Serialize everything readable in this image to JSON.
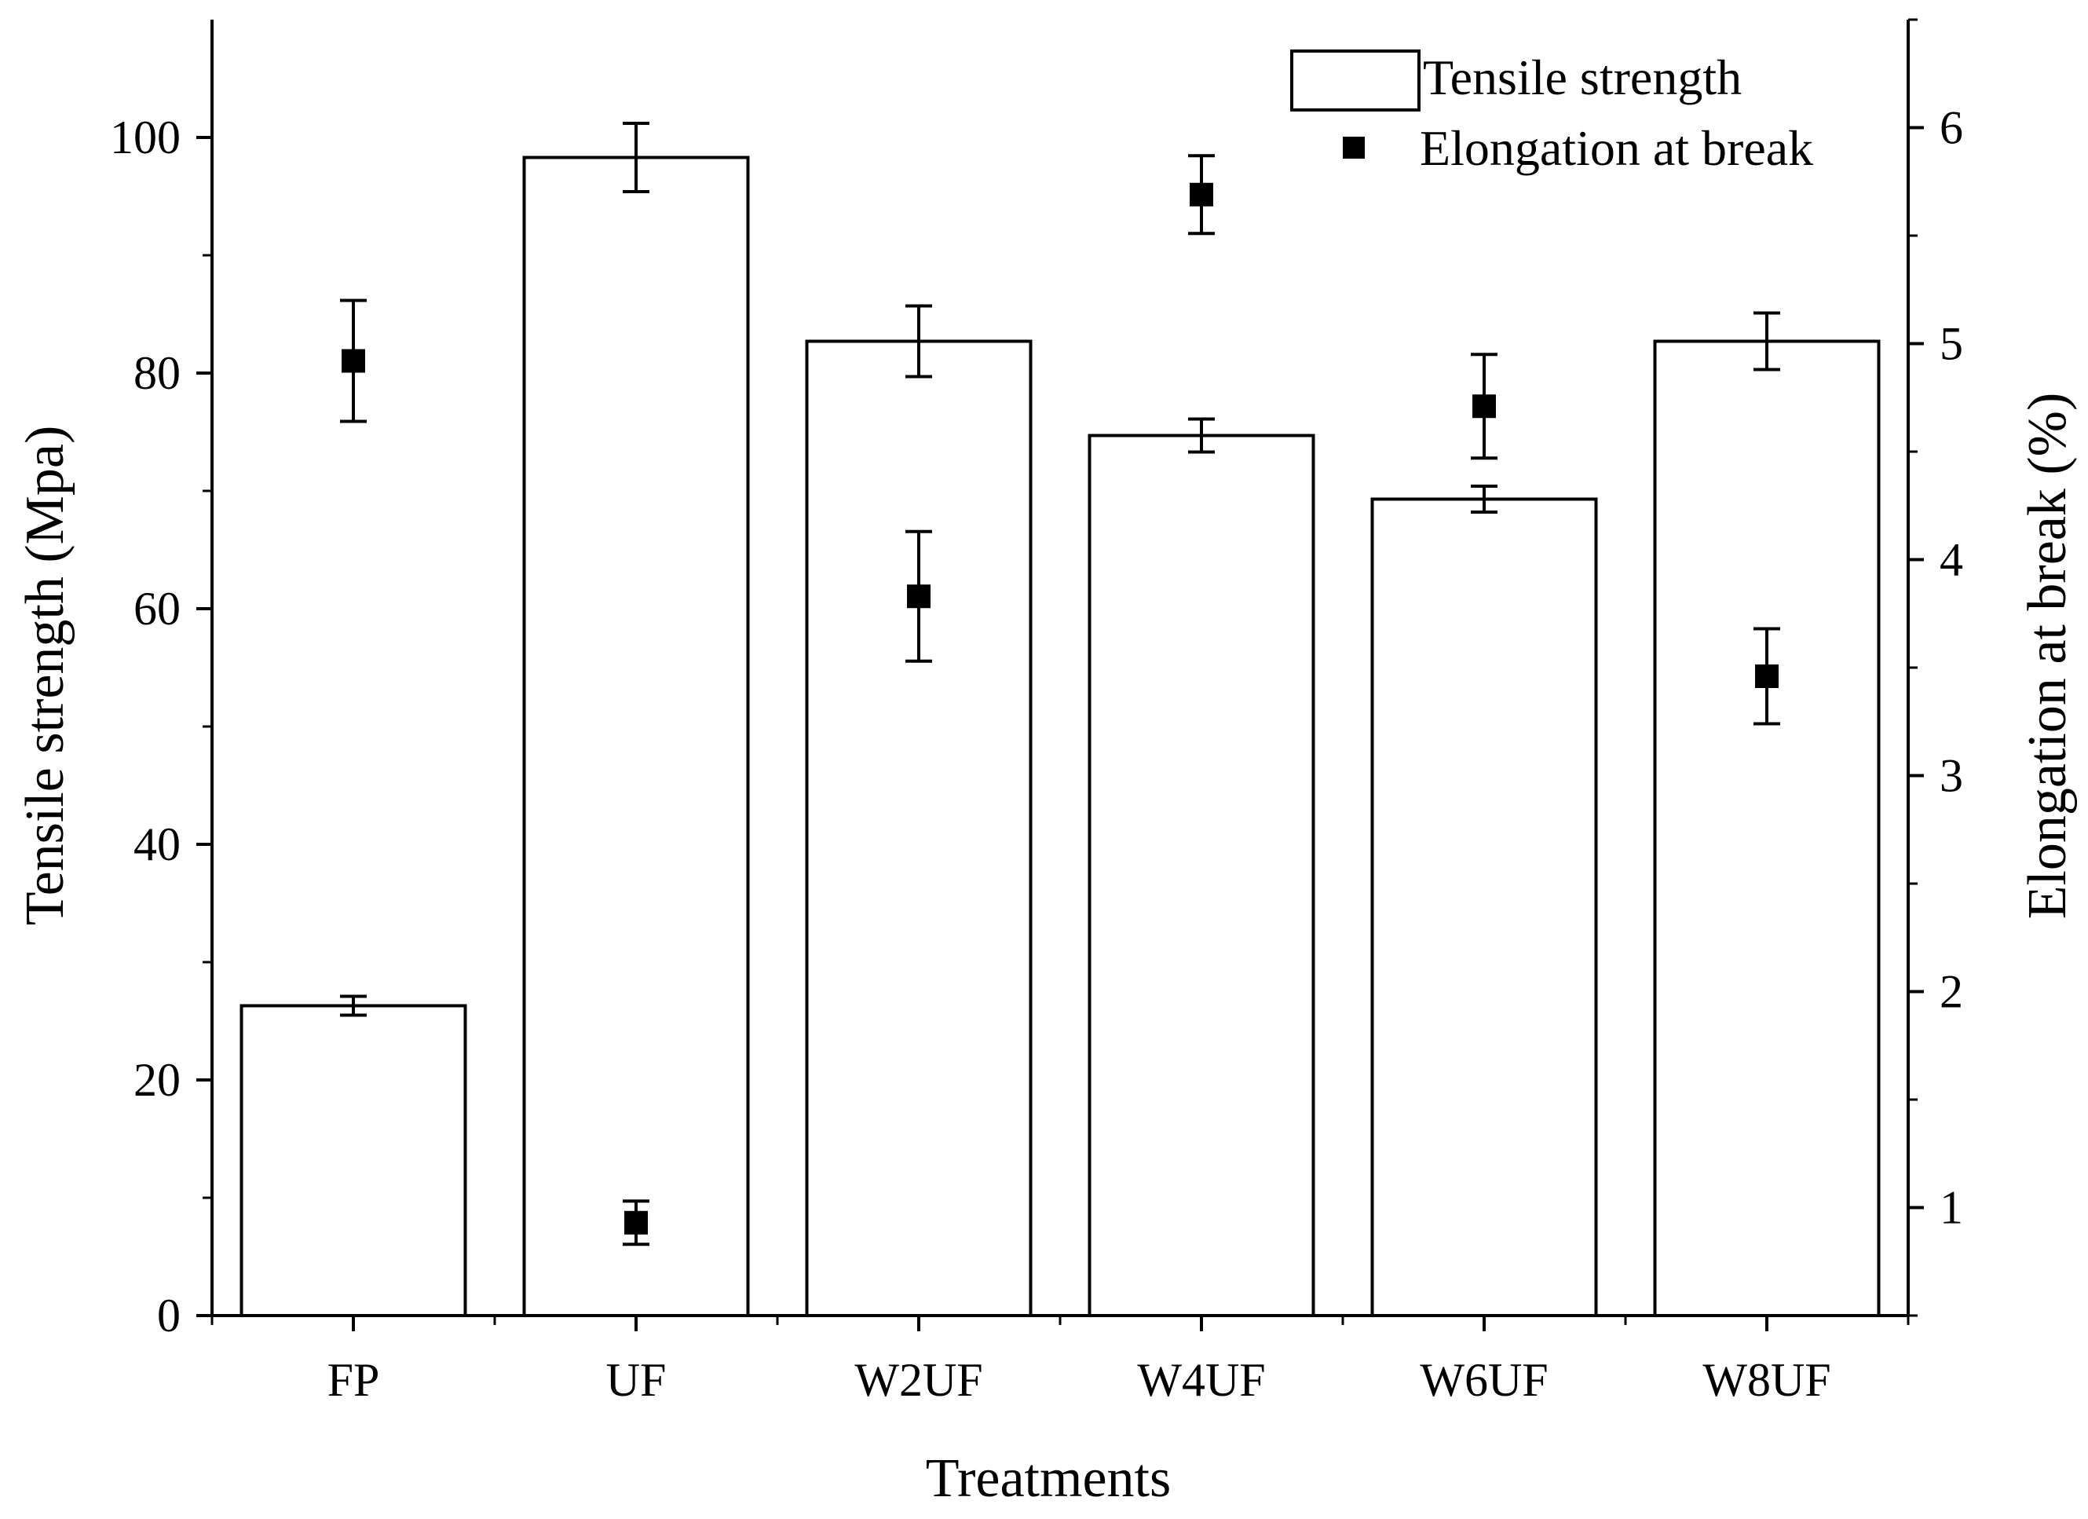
{
  "chart_data": {
    "type": "bar",
    "title": "",
    "xlabel": "Treatments",
    "categories": [
      "FP",
      "UF",
      "W2UF",
      "W4UF",
      "W6UF",
      "W8UF"
    ],
    "y_left": {
      "label": "Tensile strength (Mpa)",
      "ylim": [
        0,
        110
      ],
      "ticks": [
        0,
        20,
        40,
        60,
        80,
        100
      ],
      "tick_labels": [
        "0",
        "20",
        "40",
        "60",
        "80",
        "100"
      ]
    },
    "y_right": {
      "label": "Elongation at break (%)",
      "ylim": [
        0.5,
        6.5
      ],
      "ticks": [
        1,
        2,
        3,
        4,
        5,
        6
      ],
      "tick_labels": [
        "1",
        "2",
        "3",
        "4",
        "5",
        "6"
      ]
    },
    "series": [
      {
        "name": "Tensile strength",
        "type": "bar",
        "axis": "left",
        "values": [
          26.3,
          98.3,
          82.7,
          74.7,
          69.3,
          82.7
        ],
        "errors": [
          0.8,
          2.9,
          3.0,
          1.4,
          1.1,
          2.4
        ]
      },
      {
        "name": "Elongation at break",
        "type": "scatter",
        "axis": "right",
        "marker": "square",
        "values": [
          4.92,
          0.93,
          3.83,
          5.69,
          4.71,
          3.46
        ],
        "errors": [
          0.28,
          0.1,
          0.3,
          0.18,
          0.24,
          0.22
        ]
      }
    ],
    "legend": {
      "position": "top-right",
      "entries": [
        "Tensile strength",
        "Elongation at break"
      ]
    },
    "colors": {
      "line": "#000000",
      "bar_fill": "#ffffff",
      "marker": "#000000"
    }
  }
}
